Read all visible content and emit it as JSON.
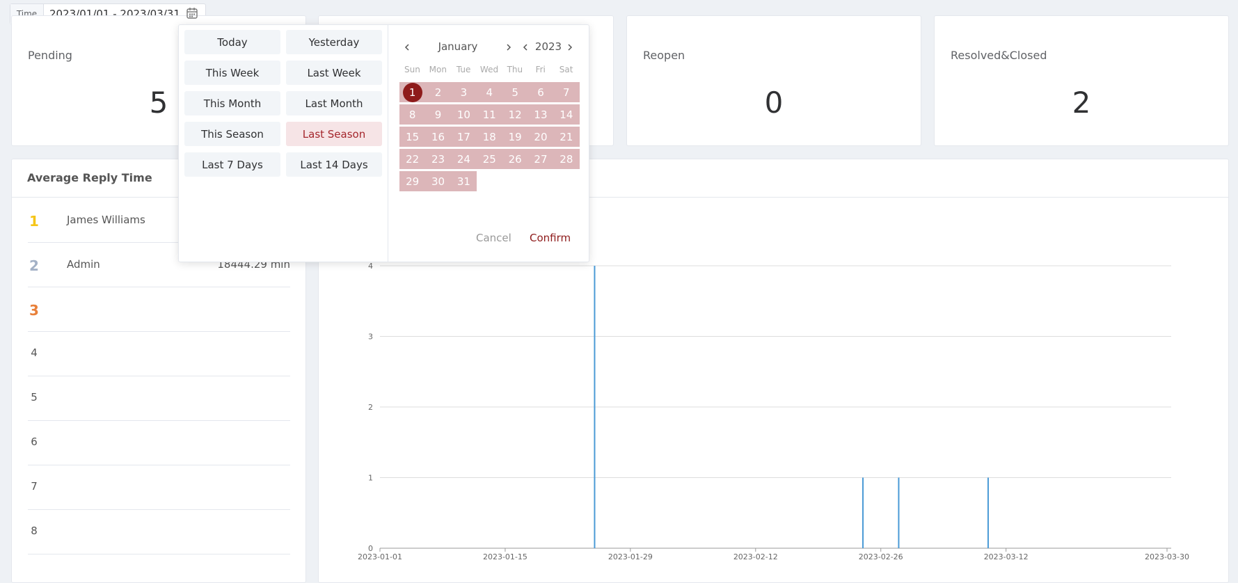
{
  "filter": {
    "label": "Time",
    "value": "2023/01/01 - 2023/03/31"
  },
  "cards": [
    {
      "label": "Pending",
      "value": 5
    },
    {
      "label": "Reopen",
      "value": 0
    },
    {
      "label": "Resolved&Closed",
      "value": 2
    }
  ],
  "ranking": {
    "title": "Average Reply Time",
    "rows": [
      {
        "rank": 1,
        "name": "James Williams"
      },
      {
        "rank": 2,
        "name": "Admin",
        "value": "18444.29 min"
      },
      {
        "rank": 3
      },
      {
        "rank": 4
      },
      {
        "rank": 5
      },
      {
        "rank": 6
      },
      {
        "rank": 7
      },
      {
        "rank": 8
      }
    ]
  },
  "picker": {
    "shortcuts": [
      "Today",
      "Yesterday",
      "This Week",
      "Last Week",
      "This Month",
      "Last Month",
      "This Season",
      "Last Season",
      "Last 7 Days",
      "Last 14 Days"
    ],
    "active_shortcut": 7,
    "month": "January",
    "year": 2023,
    "weekdays": [
      "Sun",
      "Mon",
      "Tue",
      "Wed",
      "Thu",
      "Fri",
      "Sat"
    ],
    "days": [
      1,
      2,
      3,
      4,
      5,
      6,
      7,
      8,
      9,
      10,
      11,
      12,
      13,
      14,
      15,
      16,
      17,
      18,
      19,
      20,
      21,
      22,
      23,
      24,
      25,
      26,
      27,
      28,
      29,
      30,
      31
    ],
    "cancel": "Cancel",
    "confirm": "Confirm"
  },
  "chart_data": {
    "type": "bar",
    "x": [
      "2023-01-25",
      "2023-02-24",
      "2023-02-28",
      "2023-03-10"
    ],
    "values": [
      4,
      1,
      1,
      1
    ],
    "color": "#4a9ad6",
    "xlim": [
      "2023-01-01",
      "2023-03-30"
    ],
    "xticks": [
      "2023-01-01",
      "2023-01-15",
      "2023-01-29",
      "2023-02-12",
      "2023-02-26",
      "2023-03-12",
      "2023-03-30"
    ],
    "ylim": [
      0,
      4
    ],
    "yticks": [
      0,
      1,
      2,
      3,
      4
    ],
    "grid": true
  }
}
